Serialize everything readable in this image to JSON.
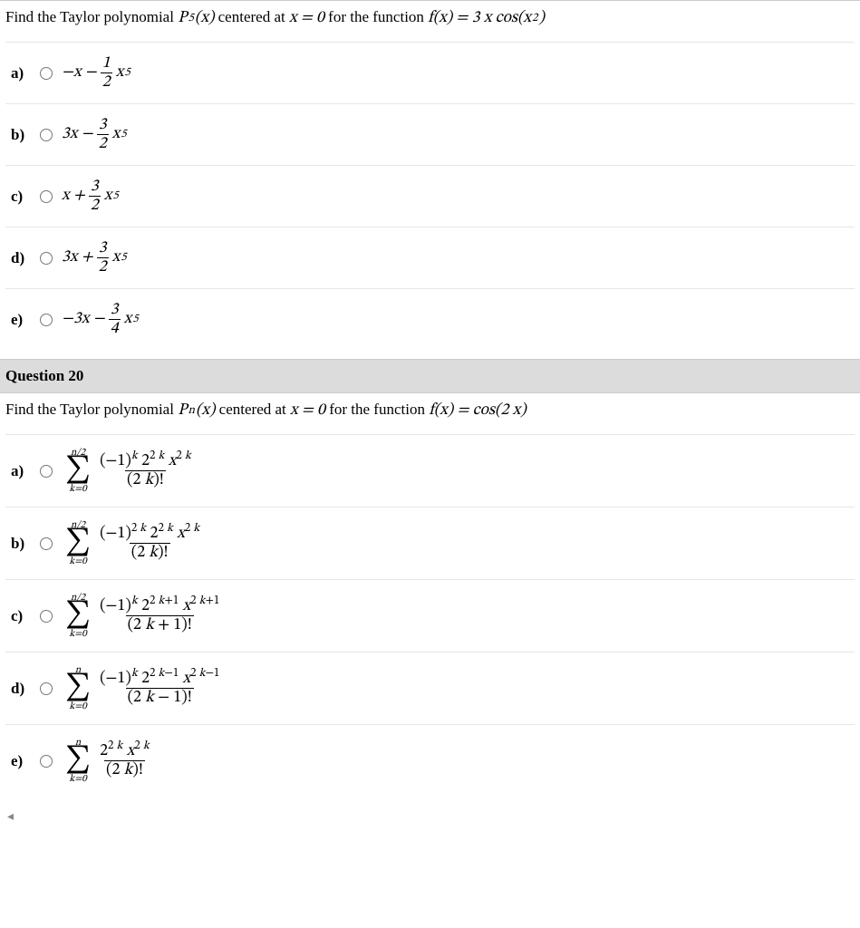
{
  "q19": {
    "prompt_prefix": "Find the Taylor polynomial ",
    "prompt_poly": "P",
    "prompt_poly_sub": "5",
    "prompt_poly_arg": "(x)",
    "prompt_mid": " centered at ",
    "prompt_center": "x = 0",
    "prompt_for": " for the function  ",
    "prompt_func": "f(x) = 3 x cos(x",
    "prompt_func_sup": "2",
    "prompt_func_end": ")",
    "options": {
      "a": {
        "label": "a)",
        "lead": "−x − ",
        "num": "1",
        "den": "2",
        "tail_base": "x",
        "tail_sup": "5"
      },
      "b": {
        "label": "b)",
        "lead": "3x − ",
        "num": "3",
        "den": "2",
        "tail_base": "x",
        "tail_sup": "5"
      },
      "c": {
        "label": "c)",
        "lead": "x + ",
        "num": "3",
        "den": "2",
        "tail_base": "x",
        "tail_sup": "5"
      },
      "d": {
        "label": "d)",
        "lead": "3x + ",
        "num": "3",
        "den": "2",
        "tail_base": "x",
        "tail_sup": "5"
      },
      "e": {
        "label": "e)",
        "lead": "−3x − ",
        "num": "3",
        "den": "4",
        "tail_base": "x",
        "tail_sup": "5"
      }
    }
  },
  "q20": {
    "header": "Question 20",
    "prompt_prefix": "Find the Taylor polynomial ",
    "prompt_poly": "P",
    "prompt_poly_sub": "n",
    "prompt_poly_arg": "(x)",
    "prompt_mid": " centered at ",
    "prompt_center": "x = 0",
    "prompt_for": " for the function  ",
    "prompt_func": "f(x) = cos(2 x)",
    "options": {
      "a": {
        "label": "a)",
        "upper": "n/2",
        "lower": "k=0",
        "num_html": "(−1)<sup class='it'>k</sup> 2<sup>2 <span class='it'>k</span></sup> <span class='it'>x</span><sup>2 <span class='it'>k</span></sup>",
        "den_html": "(2 <span class='it'>k</span>)!"
      },
      "b": {
        "label": "b)",
        "upper": "n/2",
        "lower": "k=0",
        "num_html": "(−1)<sup>2 <span class='it'>k</span></sup> 2<sup>2 <span class='it'>k</span></sup> <span class='it'>x</span><sup>2 <span class='it'>k</span></sup>",
        "den_html": "(2 <span class='it'>k</span>)!"
      },
      "c": {
        "label": "c)",
        "upper": "n/2",
        "lower": "k=0",
        "num_html": "(−1)<sup class='it'>k</sup> 2<sup>2 <span class='it'>k</span>+1</sup> <span class='it'>x</span><sup>2 <span class='it'>k</span>+1</sup>",
        "den_html": "(2 <span class='it'>k</span> + 1)!"
      },
      "d": {
        "label": "d)",
        "upper": "n",
        "lower": "k=0",
        "num_html": "(−1)<sup class='it'>k</sup> 2<sup>2 <span class='it'>k</span>−1</sup> <span class='it'>x</span><sup>2 <span class='it'>k</span>−1</sup>",
        "den_html": "(2 <span class='it'>k</span> − 1)!"
      },
      "e": {
        "label": "e)",
        "upper": "n",
        "lower": "k=0",
        "num_html": "2<sup>2 <span class='it'>k</span></sup> <span class='it'>x</span><sup>2 <span class='it'>k</span></sup>",
        "den_html": "(2 <span class='it'>k</span>)!"
      }
    }
  },
  "nav_arrow": "◂"
}
